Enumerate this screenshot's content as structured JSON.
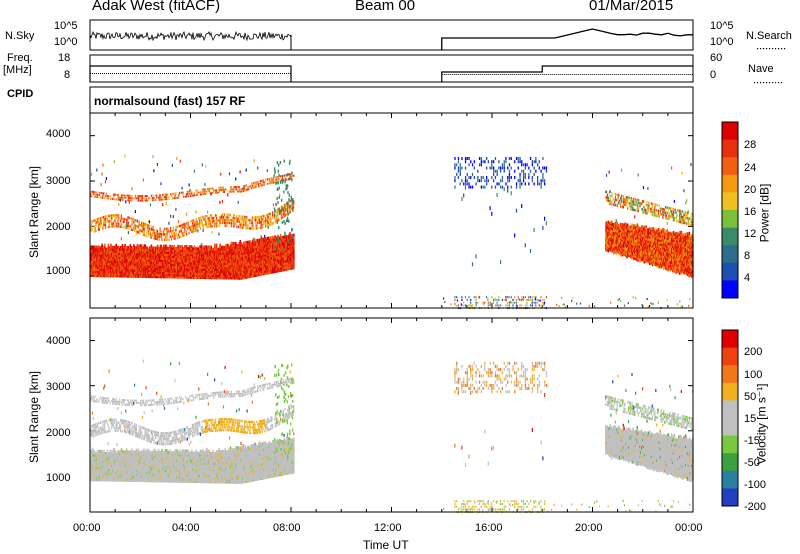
{
  "header": {
    "radar": "Adak West (fitACF)",
    "beam": "Beam 00",
    "date": "01/Mar/2015"
  },
  "strip": {
    "nsky_label": "N.Sky",
    "nsky_ticks": [
      "10^5",
      "10^0"
    ],
    "nsearch_label": "N.Search",
    "nsearch_ticks": [
      "10^5",
      "10^0"
    ],
    "freq_label": "Freq.",
    "freq_unit": "[MHz]",
    "freq_ticks": [
      "18",
      "8"
    ],
    "nave_label": "Nave",
    "nave_ticks": [
      "60",
      "0"
    ],
    "cpid_label": "CPID",
    "cpid_value": "normalsound (fast) 157 RF"
  },
  "colors": {
    "power": [
      "#0000ff",
      "#1e4fb0",
      "#2e6e8c",
      "#3b8a6a",
      "#7bbf3a",
      "#f0c020",
      "#f59a10",
      "#f06010",
      "#e83010",
      "#dd0000"
    ],
    "velocity": [
      "#2040c0",
      "#2a80a0",
      "#3aa040",
      "#78c840",
      "#c0c0c0",
      "#c0c0c0",
      "#f0b020",
      "#f07818",
      "#f04010",
      "#e00000"
    ]
  },
  "chart_data": [
    {
      "type": "heatmap",
      "parameter": "power",
      "ylabel": "Slant Range [km]",
      "yticks": [
        "4000",
        "3000",
        "2000",
        "1000"
      ],
      "ylim": [
        200,
        4500
      ],
      "xlim": [
        "00:00",
        "24:00"
      ],
      "colorbar_label": "Power [dB]",
      "colorbar_ticks": [
        "28",
        "24",
        "20",
        "16",
        "12",
        "8",
        "4"
      ],
      "colorbar_range": [
        0,
        32
      ]
    },
    {
      "type": "heatmap",
      "parameter": "velocity",
      "ylabel": "Slant Range [km]",
      "yticks": [
        "4000",
        "3000",
        "2000",
        "1000"
      ],
      "ylim": [
        200,
        4500
      ],
      "xlim": [
        "00:00",
        "24:00"
      ],
      "xticks": [
        "00:00",
        "04:00",
        "08:00",
        "12:00",
        "16:00",
        "20:00",
        "00:00"
      ],
      "xlabel": "Time UT",
      "colorbar_label": "Velocity [m s⁻¹]",
      "colorbar_ticks": [
        "200",
        "100",
        "50",
        "15",
        "-15",
        "-50",
        "-100",
        "-200"
      ]
    }
  ]
}
